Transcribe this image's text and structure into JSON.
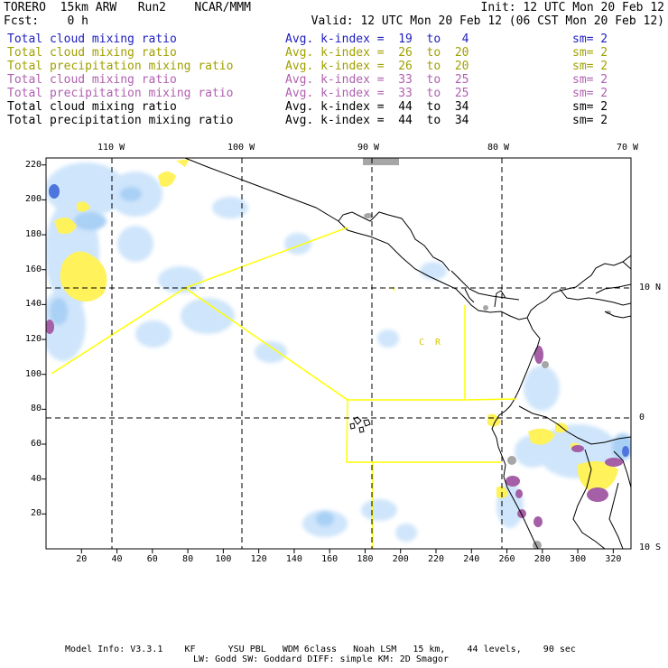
{
  "header": {
    "title_left": "TORERO  15km ARW   Run2    NCAR/MMM",
    "fcst": "Fcst:    0 h",
    "init": "Init: 12 UTC Mon 20 Feb 12",
    "valid": "Valid: 12 UTC Mon 20 Feb 12 (06 CST Mon 20 Feb 12)"
  },
  "legend": [
    {
      "name": "Total cloud mixing ratio",
      "kindex": "Avg. k-index =  19  to   4",
      "sm": "sm= 2",
      "color": "#2020c0"
    },
    {
      "name": "Total cloud mixing ratio",
      "kindex": "Avg. k-index =  26  to  20",
      "sm": "sm= 2",
      "color": "#a0a000"
    },
    {
      "name": "Total precipitation mixing ratio",
      "kindex": "Avg. k-index =  26  to  20",
      "sm": "sm= 2",
      "color": "#a0a000"
    },
    {
      "name": "Total cloud mixing ratio",
      "kindex": "Avg. k-index =  33  to  25",
      "sm": "sm= 2",
      "color": "#b060b0"
    },
    {
      "name": "Total precipitation mixing ratio",
      "kindex": "Avg. k-index =  33  to  25",
      "sm": "sm= 2",
      "color": "#b060b0"
    },
    {
      "name": "Total cloud mixing ratio",
      "kindex": "Avg. k-index =  44  to  34",
      "sm": "sm= 2",
      "color": "#000000"
    },
    {
      "name": "Total precipitation mixing ratio",
      "kindex": "Avg. k-index =  44  to  34",
      "sm": "sm= 2",
      "color": "#000000"
    }
  ],
  "axes": {
    "x_ticks": [
      "20",
      "40",
      "60",
      "80",
      "100",
      "120",
      "140",
      "160",
      "180",
      "200",
      "220",
      "240",
      "260",
      "280",
      "300",
      "320"
    ],
    "y_ticks": [
      "20",
      "40",
      "60",
      "80",
      "100",
      "120",
      "140",
      "160",
      "180",
      "200",
      "220"
    ],
    "lon_labels": [
      "110 W",
      "100 W",
      "90 W",
      "80 W",
      "70 W"
    ],
    "lat_labels": [
      "10 N",
      "0",
      "10 S"
    ]
  },
  "map_labels": {
    "cr": "C  R"
  },
  "footer": {
    "line1": "Model Info: V3.3.1    KF      YSU PBL   WDM 6class   Noah LSM   15 km,    44 levels,    90 sec",
    "line2": "LW: Godd SW: Goddard DIFF: simple KM: 2D Smagor"
  },
  "colors": {
    "cloud_light": "#cfe5fb",
    "cloud_mid": "#a9d0f5",
    "cloud_dark": "#4e74dd",
    "precip_yellow": "#fff25a",
    "precip_purple": "#a45fa6",
    "precip_gray": "#a6a6a6",
    "boundary_yellow": "#ffff00"
  }
}
